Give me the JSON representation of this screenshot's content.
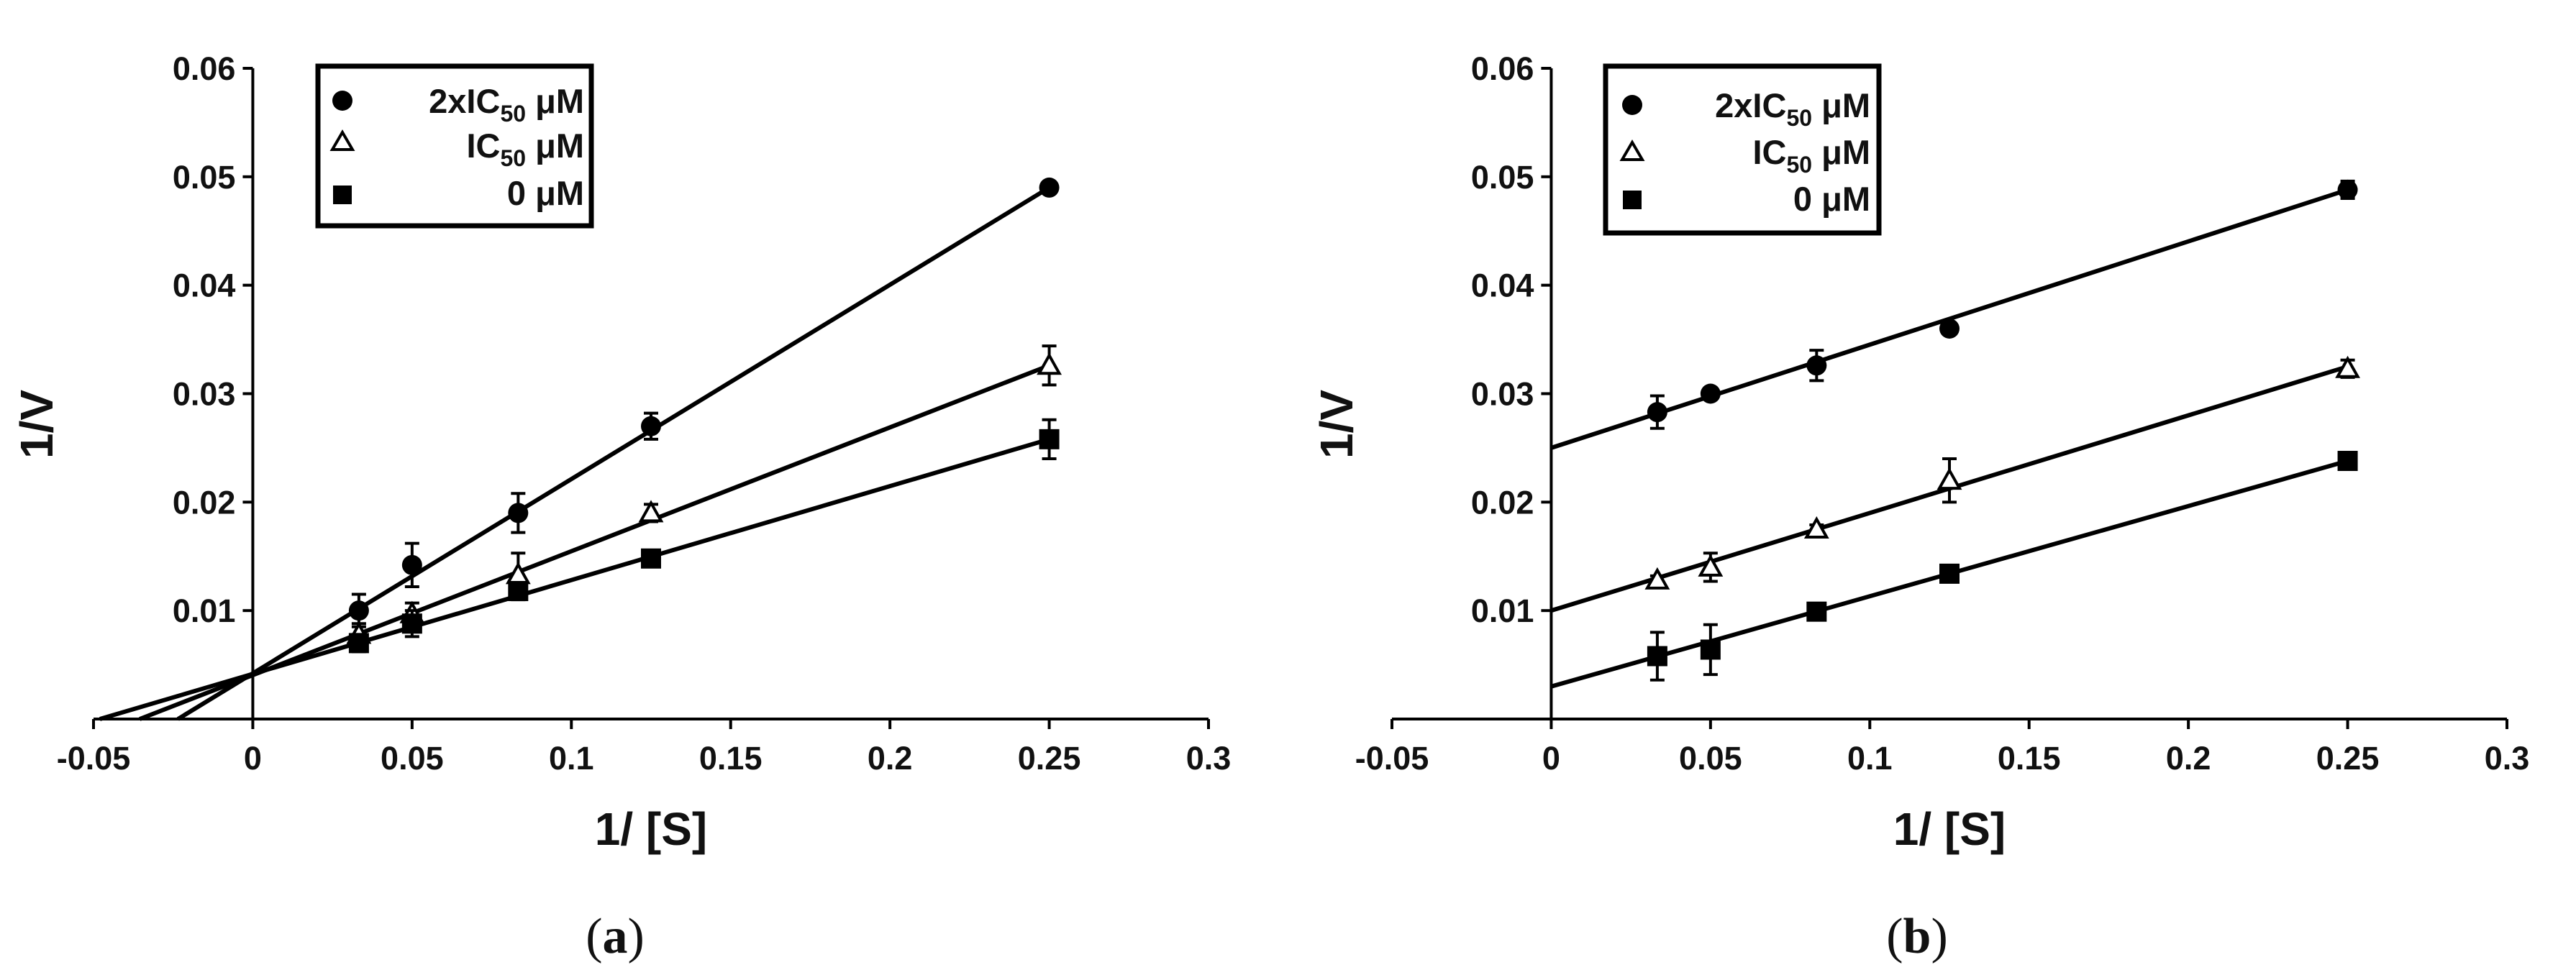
{
  "chart_data": [
    {
      "type": "scatter",
      "panel_caption": {
        "open": "(",
        "letter": "a",
        "close": ")"
      },
      "xlabel": "1/ [S]",
      "ylabel": "1/V",
      "xlim": [
        -0.05,
        0.3
      ],
      "ylim": [
        0,
        0.06
      ],
      "x_ticks": [
        -0.05,
        0,
        0.05,
        0.1,
        0.15,
        0.2,
        0.25,
        0.3
      ],
      "x_tick_labels": [
        "-0.05",
        "0",
        "0.05",
        "0.1",
        "0.15",
        "0.2",
        "0.25",
        "0.3"
      ],
      "y_ticks": [
        0.01,
        0.02,
        0.03,
        0.04,
        0.05,
        0.06
      ],
      "y_tick_labels": [
        "0.01",
        "0.02",
        "0.03",
        "0.04",
        "0.05",
        "0.06"
      ],
      "legend_position": "top-left",
      "series": [
        {
          "legend": {
            "main": "2xIC",
            "sub": "50",
            "unit": " μM"
          },
          "marker": "circle",
          "points": [
            {
              "x": 0.0333,
              "y": 0.01,
              "err": 0.0015
            },
            {
              "x": 0.05,
              "y": 0.0142,
              "err": 0.002
            },
            {
              "x": 0.0833,
              "y": 0.019,
              "err": 0.0018
            },
            {
              "x": 0.125,
              "y": 0.027,
              "err": 0.0012
            },
            {
              "x": 0.25,
              "y": 0.049,
              "err": 0.0004
            }
          ],
          "fit": {
            "x1": -0.0235,
            "y1": 0.0,
            "x2": 0.25,
            "y2": 0.049
          }
        },
        {
          "legend": {
            "main": "IC",
            "sub": "50",
            "unit": " μM"
          },
          "marker": "triangle-open",
          "points": [
            {
              "x": 0.0333,
              "y": 0.0078,
              "err": 0.001
            },
            {
              "x": 0.05,
              "y": 0.0097,
              "err": 0.001
            },
            {
              "x": 0.0833,
              "y": 0.0133,
              "err": 0.002
            },
            {
              "x": 0.125,
              "y": 0.019,
              "err": 0.0008
            },
            {
              "x": 0.25,
              "y": 0.0326,
              "err": 0.0018
            }
          ],
          "fit": {
            "x1": -0.0355,
            "y1": 0.0,
            "x2": 0.25,
            "y2": 0.0326
          }
        },
        {
          "legend": {
            "main": "0 μM",
            "sub": "",
            "unit": ""
          },
          "marker": "square",
          "points": [
            {
              "x": 0.0333,
              "y": 0.007,
              "err": 0.0008
            },
            {
              "x": 0.05,
              "y": 0.0088,
              "err": 0.0012
            },
            {
              "x": 0.0833,
              "y": 0.0118,
              "err": 0.0008
            },
            {
              "x": 0.125,
              "y": 0.0148,
              "err": 0.0004
            },
            {
              "x": 0.25,
              "y": 0.0258,
              "err": 0.0018
            }
          ],
          "fit": {
            "x1": -0.048,
            "y1": 0.0,
            "x2": 0.25,
            "y2": 0.0258
          }
        }
      ]
    },
    {
      "type": "scatter",
      "panel_caption": {
        "open": "(",
        "letter": "b",
        "close": ")"
      },
      "xlabel": "1/ [S]",
      "ylabel": "1/V",
      "xlim": [
        -0.05,
        0.3
      ],
      "ylim": [
        0,
        0.06
      ],
      "x_ticks": [
        -0.05,
        0,
        0.05,
        0.1,
        0.15,
        0.2,
        0.25,
        0.3
      ],
      "x_tick_labels": [
        "-0.05",
        "0",
        "0.05",
        "0.1",
        "0.15",
        "0.2",
        "0.25",
        "0.3"
      ],
      "y_ticks": [
        0.01,
        0.02,
        0.03,
        0.04,
        0.05,
        0.06
      ],
      "y_tick_labels": [
        "0.01",
        "0.02",
        "0.03",
        "0.04",
        "0.05",
        "0.06"
      ],
      "legend_position": "top-left",
      "series": [
        {
          "legend": {
            "main": "2xIC",
            "sub": "50",
            "unit": " μM"
          },
          "marker": "circle",
          "points": [
            {
              "x": 0.0333,
              "y": 0.0283,
              "err": 0.0015
            },
            {
              "x": 0.05,
              "y": 0.03,
              "err": 0.0004
            },
            {
              "x": 0.0833,
              "y": 0.0326,
              "err": 0.0014
            },
            {
              "x": 0.125,
              "y": 0.036,
              "err": 0.0004
            },
            {
              "x": 0.25,
              "y": 0.0488,
              "err": 0.0008
            }
          ],
          "fit": {
            "x1": 0.0,
            "y1": 0.025,
            "x2": 0.25,
            "y2": 0.0488
          }
        },
        {
          "legend": {
            "main": "IC",
            "sub": "50",
            "unit": " μM"
          },
          "marker": "triangle-open",
          "points": [
            {
              "x": 0.0333,
              "y": 0.0128,
              "err": 0.0004
            },
            {
              "x": 0.05,
              "y": 0.014,
              "err": 0.0013
            },
            {
              "x": 0.0833,
              "y": 0.0175,
              "err": 0.0004
            },
            {
              "x": 0.125,
              "y": 0.022,
              "err": 0.002
            },
            {
              "x": 0.25,
              "y": 0.0323,
              "err": 0.0008
            }
          ],
          "fit": {
            "x1": 0.0,
            "y1": 0.01,
            "x2": 0.25,
            "y2": 0.0325
          }
        },
        {
          "legend": {
            "main": "0 μM",
            "sub": "",
            "unit": ""
          },
          "marker": "square",
          "points": [
            {
              "x": 0.0333,
              "y": 0.0058,
              "err": 0.0022
            },
            {
              "x": 0.05,
              "y": 0.0064,
              "err": 0.0023
            },
            {
              "x": 0.0833,
              "y": 0.0099,
              "err": 0.0004
            },
            {
              "x": 0.125,
              "y": 0.0134,
              "err": 0.0004
            },
            {
              "x": 0.25,
              "y": 0.0238,
              "err": 0.0004
            }
          ],
          "fit": {
            "x1": 0.0,
            "y1": 0.003,
            "x2": 0.25,
            "y2": 0.0238
          }
        }
      ]
    }
  ]
}
